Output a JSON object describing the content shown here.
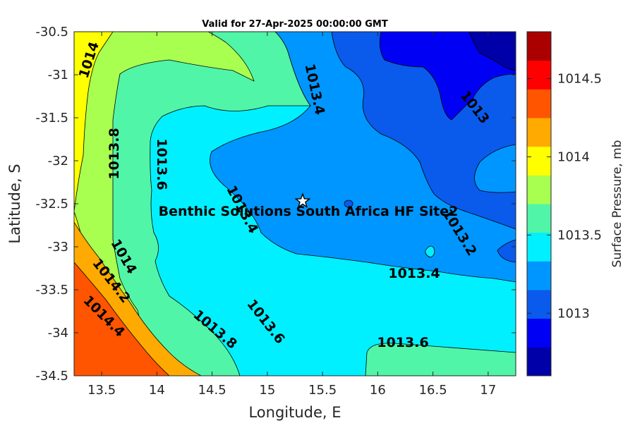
{
  "chart_data": {
    "type": "contour",
    "title": "Valid for 27-Apr-2025 00:00:00 GMT",
    "xlabel": "Longitude, E",
    "ylabel": "Latitude, S",
    "xlim": [
      13.25,
      17.25
    ],
    "ylim": [
      -34.5,
      -30.5
    ],
    "x_ticks": [
      13.5,
      14,
      14.5,
      15,
      15.5,
      16,
      16.5,
      17
    ],
    "x_tick_labels": [
      "13.5",
      "14",
      "14.5",
      "15",
      "15.5",
      "16",
      "16.5",
      "17"
    ],
    "y_ticks": [
      -30.5,
      -31,
      -31.5,
      -32,
      -32.5,
      -33,
      -33.5,
      -34,
      -34.5
    ],
    "y_tick_labels": [
      "-30.5",
      "-31",
      "-31.5",
      "-32",
      "-32.5",
      "-33",
      "-33.5",
      "-34",
      "-34.5"
    ],
    "colorbar": {
      "label": "Surface Pressure, mb",
      "range": [
        1012.6,
        1014.8
      ],
      "ticks": [
        1013,
        1013.5,
        1014,
        1014.5
      ],
      "tick_labels": [
        "1013",
        "1013.5",
        "1014",
        "1014.5"
      ],
      "levels": [
        1012.6,
        1012.7,
        1012.8,
        1012.9,
        1013.0,
        1013.1,
        1013.2,
        1013.3,
        1013.4,
        1013.5,
        1013.6,
        1013.7,
        1013.8,
        1013.9,
        1014.0,
        1014.1,
        1014.2,
        1014.3,
        1014.4,
        1014.5,
        1014.6,
        1014.7,
        1014.8
      ],
      "colors": [
        "#0000a8",
        "#0000f5",
        "#0a5aec",
        "#0096ff",
        "#00f0ff",
        "#50f5a8",
        "#a8ff50",
        "#ffff00",
        "#ffaa00",
        "#ff5500",
        "#ff0000",
        "#aa0000"
      ]
    },
    "contour_labels": [
      "1014",
      "1013.4",
      "1013",
      "1013.8",
      "1013.6",
      "1013.4",
      "1014",
      "1014.2",
      "1014.4",
      "1013.8",
      "1013.6",
      "1013.2",
      "1013.4",
      "1013.6"
    ],
    "site": {
      "name": "Benthic Solutions South Africa HF Site2",
      "lon": 15.32,
      "lat": -32.47
    }
  }
}
